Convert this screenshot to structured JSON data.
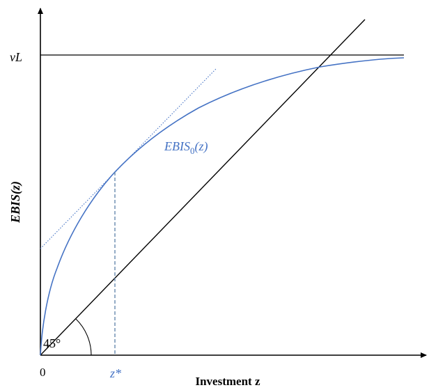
{
  "diagram": {
    "y_axis_label": "EBIS(z)",
    "x_axis_label": "Investment z",
    "y_limit_label": "νL",
    "origin_label": "0",
    "curve_label_prefix": "EBIS",
    "curve_label_subscript": "0",
    "curve_label_suffix": "(z)",
    "optimum_label": "z*",
    "angle_label": "45°",
    "colors": {
      "curve": "#4472c4",
      "dashed": "#5b80a8",
      "axes": "#000000"
    }
  }
}
